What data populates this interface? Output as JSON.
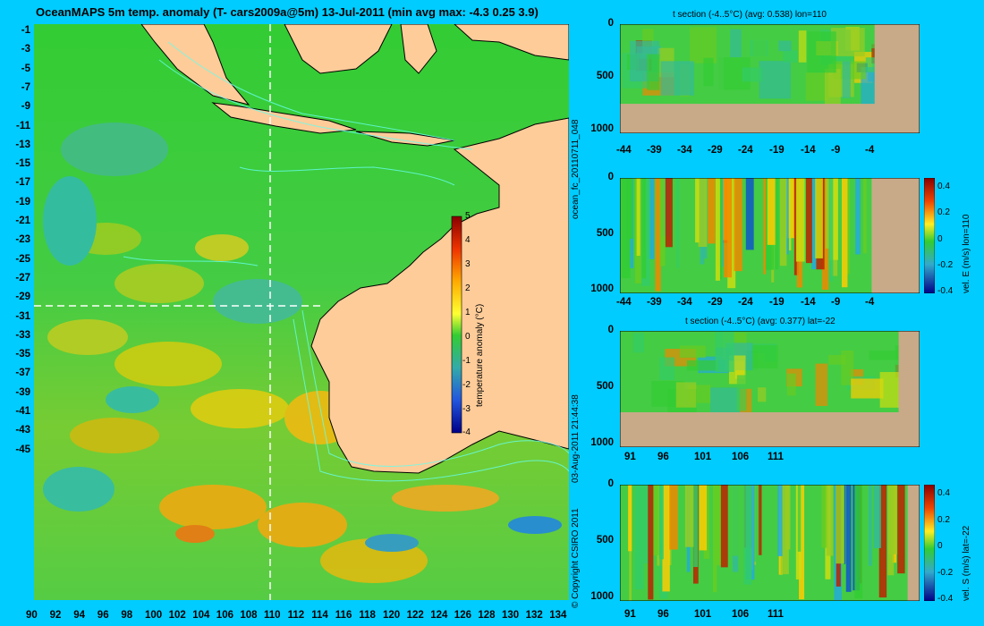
{
  "main_title": "OceanMAPS 5m temp. anomaly  (T- cars2009a@5m) 13-Jul-2011  (min avg max: -4.3 0.25 3.9)",
  "map": {
    "lat_ticks": [
      "-1",
      "-3",
      "-5",
      "-7",
      "-9",
      "-11",
      "-13",
      "-15",
      "-17",
      "-19",
      "-21",
      "-23",
      "-25",
      "-27",
      "-29",
      "-31",
      "-33",
      "-35",
      "-37",
      "-39",
      "-41",
      "-43",
      "-45"
    ],
    "lon_ticks": [
      "90",
      "92",
      "94",
      "96",
      "98",
      "100",
      "102",
      "104",
      "106",
      "108",
      "110",
      "112",
      "114",
      "116",
      "118",
      "120",
      "122",
      "124",
      "126",
      "128",
      "130",
      "132",
      "134"
    ],
    "crosshair": {
      "lon": 110,
      "lat": -22
    },
    "colorbar": {
      "label": "temperature anomaly (°C)",
      "ticks": [
        "5",
        "4",
        "3",
        "2",
        "1",
        "0",
        "-1",
        "-2",
        "-3",
        "-4"
      ]
    }
  },
  "side_texts": {
    "forecast_id": "ocean_fc_20110711_048",
    "timestamp": "03-Aug-2011 21:44:38",
    "copyright": "© Copyright CSIRO 2011"
  },
  "panels": [
    {
      "title": "t section (-4..5°C) (avg: 0.538) lon=110",
      "x_ticks": [
        "-44",
        "-39",
        "-34",
        "-29",
        "-24",
        "-19",
        "-14",
        "-9",
        "-4"
      ],
      "y_ticks": [
        "0",
        "500",
        "1000"
      ],
      "colorbar": null
    },
    {
      "title": "",
      "x_ticks": [
        "-44",
        "-39",
        "-34",
        "-29",
        "-24",
        "-19",
        "-14",
        "-9",
        "-4"
      ],
      "y_ticks": [
        "0",
        "500",
        "1000"
      ],
      "colorbar": {
        "label": "vel. E (m/s) lon=110",
        "ticks": [
          "0.4",
          "0.2",
          "0",
          "-0.2",
          "-0.4"
        ]
      }
    },
    {
      "title": "t section (-4..5°C) (avg: 0.377) lat=-22",
      "x_ticks": [
        "91",
        "96",
        "101",
        "106",
        "111"
      ],
      "y_ticks": [
        "0",
        "500",
        "1000"
      ],
      "colorbar": null
    },
    {
      "title": "",
      "x_ticks": [
        "91",
        "96",
        "101",
        "106",
        "111"
      ],
      "y_ticks": [
        "0",
        "500",
        "1000"
      ],
      "colorbar": {
        "label": "vel. S (m/s) lat=-22",
        "ticks": [
          "0.4",
          "0.2",
          "0",
          "-0.2",
          "-0.4"
        ]
      }
    }
  ],
  "colors": {
    "background": "#00ccff",
    "land": "#fdcc99",
    "seafloor": "#c8aa88",
    "ocean_base": "#33cc33"
  }
}
